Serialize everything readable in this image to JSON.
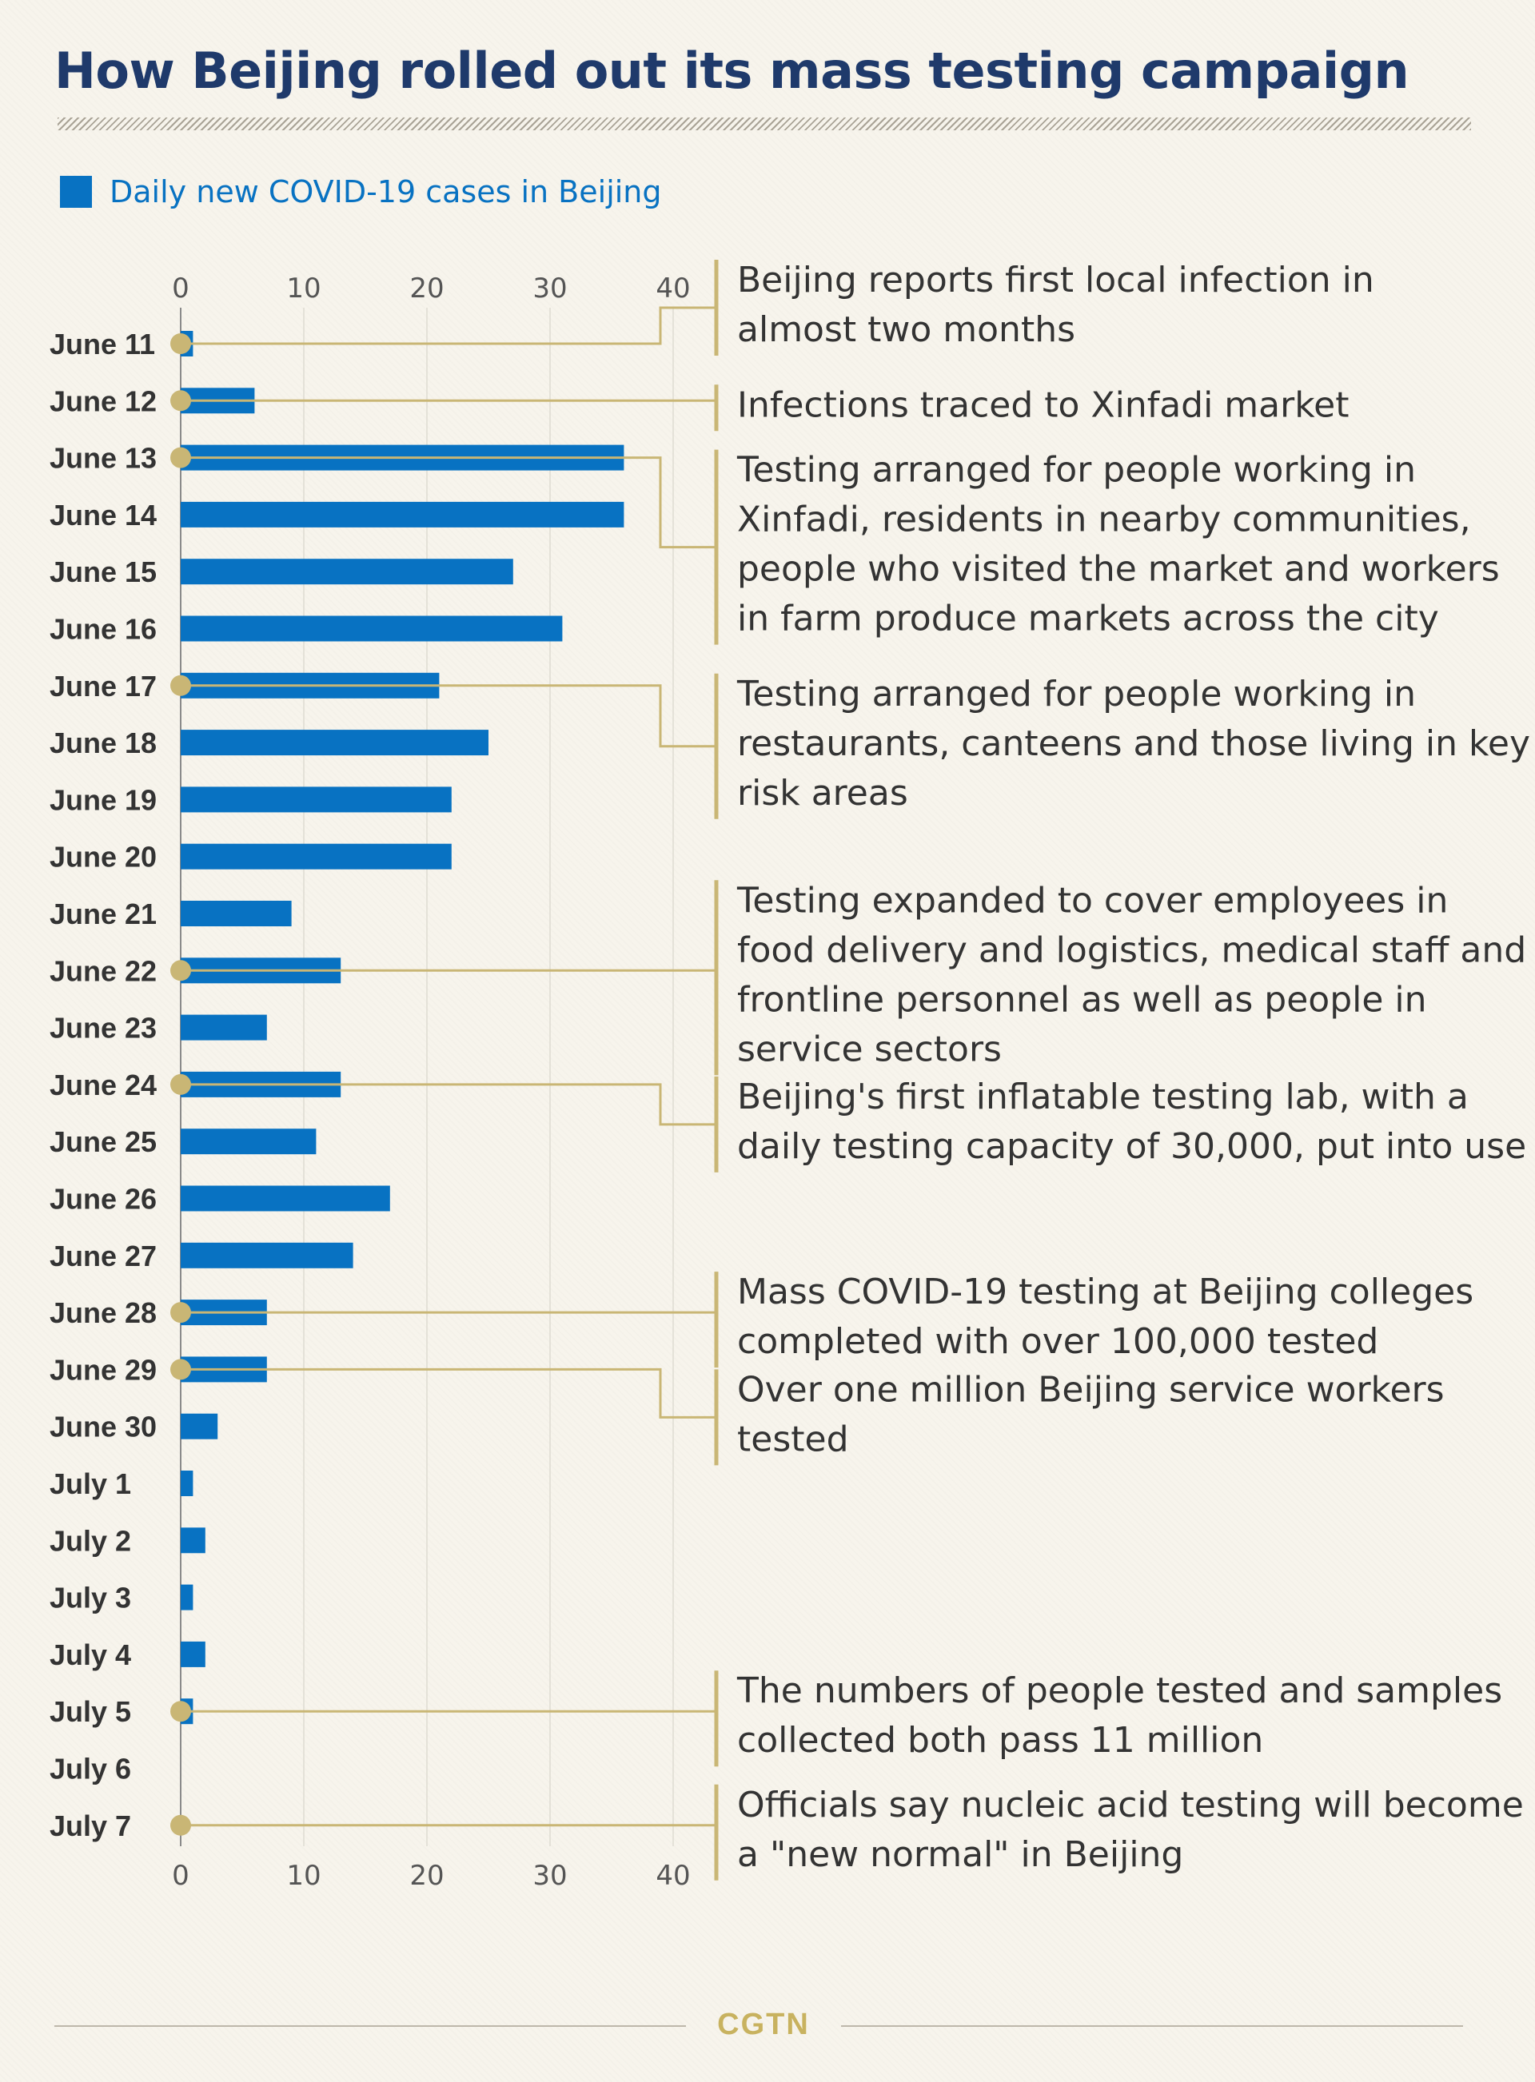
{
  "title": "How Beijing rolled out its mass testing campaign",
  "legend_label": "Daily new COVID-19 cases in Beijing",
  "logo": "CGTN",
  "colors": {
    "bar": "#0872c2",
    "connector": "#c9b675",
    "title": "#1f3a6b",
    "background": "#f7f4ec"
  },
  "chart_data": {
    "type": "bar",
    "orientation": "horizontal",
    "categories": [
      "June 11",
      "June 12",
      "June 13",
      "June 14",
      "June 15",
      "June 16",
      "June 17",
      "June 18",
      "June 19",
      "June 20",
      "June 21",
      "June 22",
      "June 23",
      "June 24",
      "June 25",
      "June 26",
      "June 27",
      "June 28",
      "June 29",
      "June 30",
      "July 1",
      "July 2",
      "July 3",
      "July 4",
      "July 5",
      "July 6",
      "July 7"
    ],
    "values": [
      1,
      6,
      36,
      36,
      27,
      31,
      21,
      25,
      22,
      22,
      9,
      13,
      7,
      13,
      11,
      17,
      14,
      7,
      7,
      3,
      1,
      2,
      1,
      2,
      1,
      0,
      0
    ],
    "series": [
      {
        "name": "Daily new COVID-19 cases in Beijing",
        "values": [
          1,
          6,
          36,
          36,
          27,
          31,
          21,
          25,
          22,
          22,
          9,
          13,
          7,
          13,
          11,
          17,
          14,
          7,
          7,
          3,
          1,
          2,
          1,
          2,
          1,
          0,
          0
        ]
      }
    ],
    "xlim": [
      0,
      40
    ],
    "ticks": [
      0,
      10,
      20,
      30,
      40
    ],
    "tick_axes": "top and bottom",
    "grid": true,
    "legend": "top-left",
    "annotations": [
      {
        "date": "June 11",
        "lines": [
          "Beijing reports first local infection in",
          "almost two months"
        ]
      },
      {
        "date": "June 12",
        "lines": [
          "Infections traced to Xinfadi market"
        ]
      },
      {
        "date": "June 13",
        "lines": [
          "Testing arranged for people working in",
          "Xinfadi, residents in nearby communities,",
          "people who visited the market and workers",
          "in farm produce markets across the city"
        ]
      },
      {
        "date": "June 17",
        "lines": [
          "Testing arranged for people working in",
          "restaurants, canteens and those living in key",
          "risk areas"
        ]
      },
      {
        "date": "June 22",
        "lines": [
          "Testing expanded to cover employees in",
          "food delivery and logistics, medical staff and",
          "frontline personnel as well as people in",
          "service sectors"
        ]
      },
      {
        "date": "June 24",
        "lines": [
          "Beijing's first inflatable testing lab, with a",
          "daily testing capacity of 30,000, put into use"
        ]
      },
      {
        "date": "June 28",
        "lines": [
          "Mass COVID-19 testing at Beijing colleges",
          "completed with over 100,000 tested"
        ]
      },
      {
        "date": "June 29",
        "lines": [
          "Over one million Beijing service workers",
          "tested"
        ]
      },
      {
        "date": "July 5",
        "lines": [
          "The numbers of people tested and samples",
          "collected both pass 11 million"
        ]
      },
      {
        "date": "July 7",
        "lines": [
          "Officials say nucleic acid testing will become",
          "a \"new normal\" in Beijing"
        ]
      }
    ]
  }
}
